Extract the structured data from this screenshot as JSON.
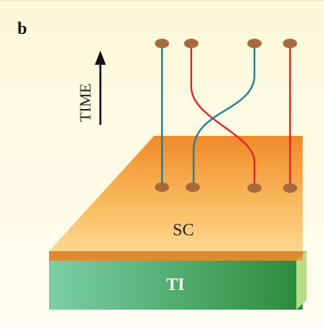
{
  "panel_label": "b",
  "axis_label": "TIME",
  "layers": [
    {
      "label": "SC"
    },
    {
      "label": "TI"
    }
  ]
}
